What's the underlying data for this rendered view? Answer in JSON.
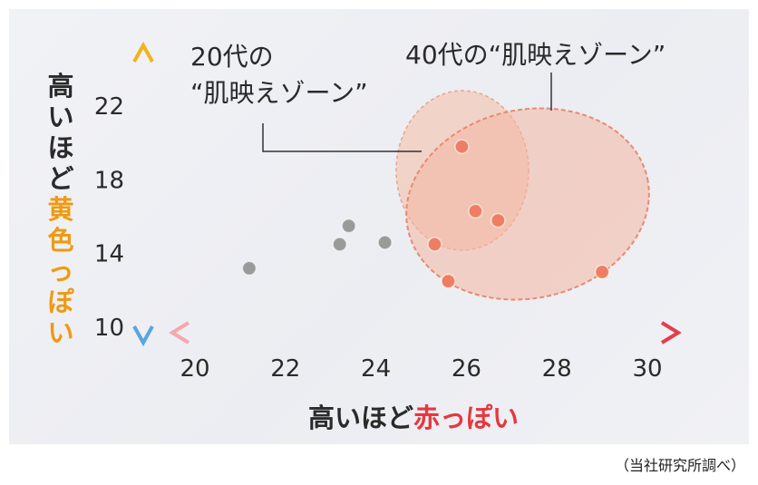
{
  "chart_data": {
    "type": "scatter",
    "title": "",
    "xlabel": {
      "prefix": "高いほど",
      "highlight": "赤っぽい"
    },
    "ylabel": {
      "prefix": "高いほど",
      "highlight": "黄色っぽい"
    },
    "xlim": [
      20,
      30
    ],
    "ylim": [
      10,
      22
    ],
    "xticks": [
      "20",
      "22",
      "24",
      "26",
      "28",
      "30"
    ],
    "yticks": [
      "22",
      "18",
      "14",
      "10"
    ],
    "grid": false,
    "series": [
      {
        "color": "#9a9a9a",
        "points": [
          [
            21.2,
            13.2
          ],
          [
            23.2,
            14.5
          ],
          [
            23.4,
            15.5
          ],
          [
            24.2,
            14.6
          ]
        ]
      },
      {
        "color": "#ee7e63",
        "points": [
          [
            25.3,
            14.5
          ],
          [
            25.6,
            12.5
          ],
          [
            25.9,
            19.8
          ],
          [
            26.2,
            16.3
          ],
          [
            26.7,
            15.8
          ],
          [
            29.0,
            13.0
          ]
        ]
      }
    ],
    "annotations": [
      {
        "label_lines": [
          "20代の",
          "“肌映えゾーン”"
        ],
        "fill": "#f2c9ba",
        "stroke": "#e9a58e"
      },
      {
        "label_lines": [
          "40代の“肌映えゾーン”"
        ],
        "fill": "#f4b7a3",
        "stroke": "#e88a6d"
      }
    ],
    "colors": {
      "x_axis": "#e53c4a",
      "y_axis_top": "#f2b31b",
      "y_axis_bottom": "#56a6de",
      "gray_point": "#9a9a9a",
      "orange_point": "#ee7e63",
      "xlabel_highlight": "#e6373f",
      "ylabel_highlight": "#ef9a12"
    }
  },
  "source_note": "（当社研究所調べ）"
}
